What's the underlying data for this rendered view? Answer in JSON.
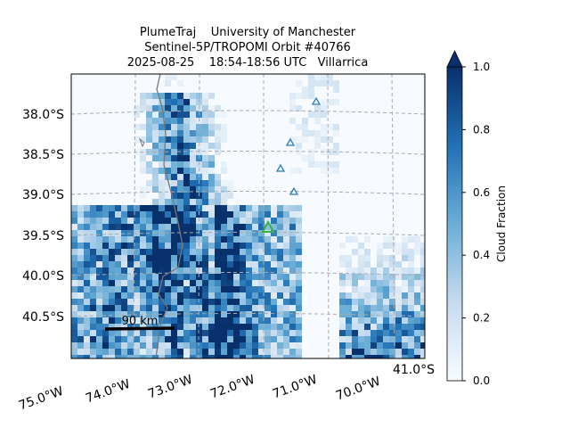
{
  "title_lines": [
    "PlumeTraj    University of Manchester",
    "Sentinel-5P/TROPOMI Orbit #40766",
    "2025-08-25    18:54-18:56 UTC   Villarrica"
  ],
  "lat_labels": [
    "38.0°S",
    "38.5°S",
    "39.0°S",
    "39.5°S",
    "40.0°S",
    "40.5°S"
  ],
  "lon_labels": [
    "75.0°W",
    "74.0°W",
    "73.0°W",
    "72.0°W",
    "71.0°W",
    "70.0°W",
    "41.0°S"
  ],
  "scale_bar": "90 km",
  "colorbar": {
    "label": "Cloud Fraction",
    "lim": [
      0,
      1
    ],
    "ticks": [
      {
        "value": 0,
        "label": "0.0"
      },
      0.2,
      0.4,
      0.6,
      0.8,
      {
        "value": 1,
        "label": "1.0"
      }
    ]
  }
}
